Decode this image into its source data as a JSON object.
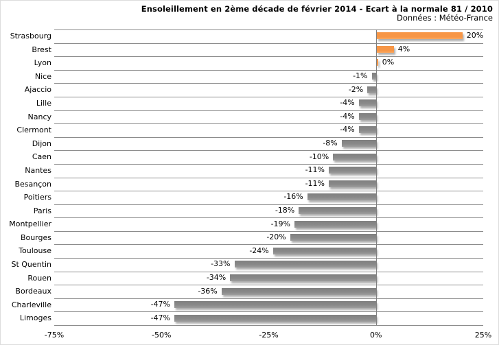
{
  "chart_data": {
    "type": "bar",
    "orientation": "horizontal",
    "title": "Ensoleillement en 2ème décade de février 2014 - Ecart à la normale 81 / 2010",
    "subtitle": "Données : Météo-France",
    "categories": [
      "Strasbourg",
      "Brest",
      "Lyon",
      "Nice",
      "Ajaccio",
      "Lille",
      "Nancy",
      "Clermont",
      "Dijon",
      "Caen",
      "Nantes",
      "Besançon",
      "Poitiers",
      "Paris",
      "Montpellier",
      "Bourges",
      "Toulouse",
      "St Quentin",
      "Rouen",
      "Bordeaux",
      "Charleville",
      "Limoges"
    ],
    "values": [
      20,
      4,
      0,
      -1,
      -2,
      -4,
      -4,
      -4,
      -8,
      -10,
      -11,
      -11,
      -16,
      -18,
      -19,
      -20,
      -24,
      -33,
      -34,
      -36,
      -47,
      -47
    ],
    "value_labels": [
      "20%",
      "4%",
      "0%",
      "-1%",
      "-2%",
      "-4%",
      "-4%",
      "-4%",
      "-8%",
      "-10%",
      "-11%",
      "-11%",
      "-16%",
      "-18%",
      "-19%",
      "-20%",
      "-24%",
      "-33%",
      "-34%",
      "-36%",
      "-47%",
      "-47%"
    ],
    "xlabel": "",
    "ylabel": "",
    "xlim": [
      -75,
      25
    ],
    "x_ticks": [
      -75,
      -50,
      -25,
      0,
      25
    ],
    "x_tick_labels": [
      "-75%",
      "-50%",
      "-25%",
      "0%",
      "25%"
    ],
    "grid": "horizontal-category-lines",
    "legend": "none",
    "colors": {
      "positive_bar": "#F79646",
      "negative_bar": "#8A8A8A",
      "gridline": "#8C8C8C",
      "zero_axis": "#808080",
      "text": "#000000",
      "background": "#FFFFFF"
    }
  }
}
